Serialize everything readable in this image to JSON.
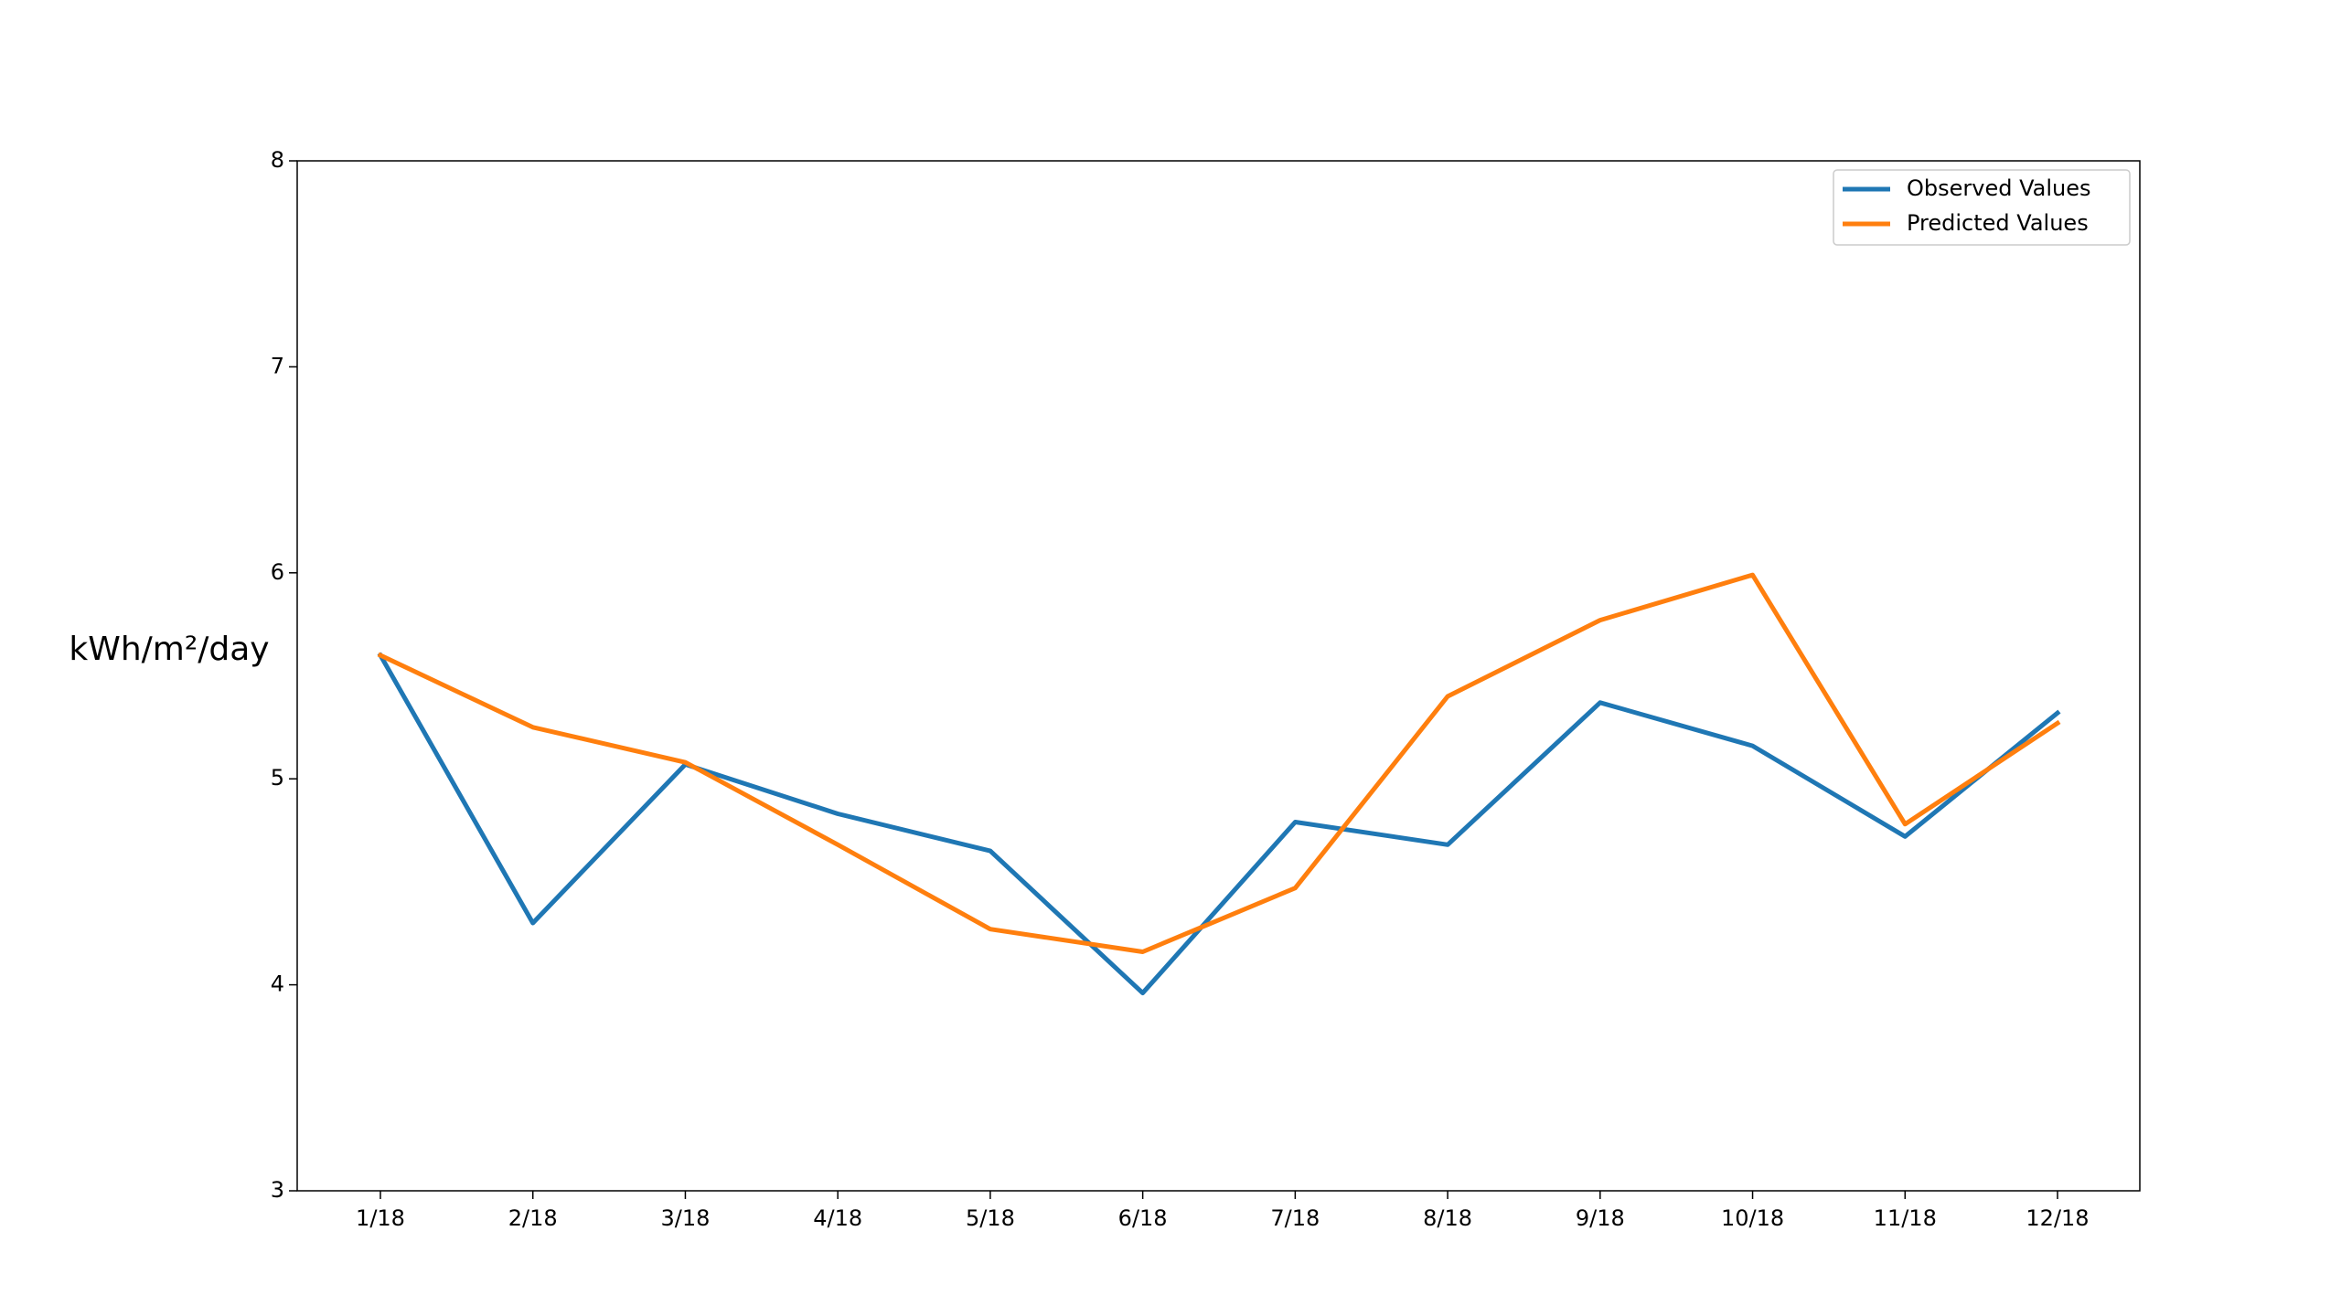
{
  "chart_data": {
    "type": "line",
    "title": "",
    "xlabel": "",
    "ylabel": "kWh/m²/day",
    "categories": [
      "1/18",
      "2/18",
      "3/18",
      "4/18",
      "5/18",
      "6/18",
      "7/18",
      "8/18",
      "9/18",
      "10/18",
      "11/18",
      "12/18"
    ],
    "series": [
      {
        "name": "Observed Values",
        "color": "#1f77b4",
        "values": [
          5.6,
          4.3,
          5.07,
          4.83,
          4.65,
          3.96,
          4.79,
          4.68,
          5.37,
          5.16,
          4.72,
          5.32
        ]
      },
      {
        "name": "Predicted Values",
        "color": "#ff7f0e",
        "values": [
          5.6,
          5.25,
          5.08,
          4.68,
          4.27,
          4.16,
          4.47,
          5.4,
          5.77,
          5.99,
          4.78,
          5.27
        ]
      }
    ],
    "ylim": [
      3,
      8
    ],
    "yticks": [
      "3",
      "4",
      "5",
      "6",
      "7",
      "8"
    ],
    "grid": false,
    "legend_position": "top-right"
  }
}
